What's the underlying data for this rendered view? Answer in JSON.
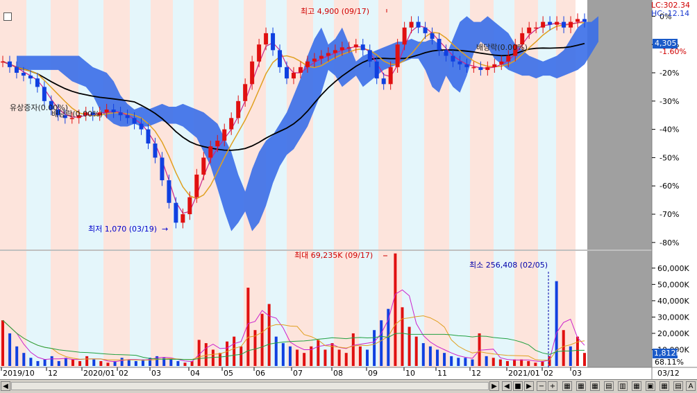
{
  "chart_data": [
    {
      "type": "candlestick",
      "title": "",
      "price_high_label": "최고 4,900 (09/17)",
      "price_low_label": "최저 1,070 (03/19)",
      "last_value_label": "4,305",
      "last_pct_label": "-1.60%",
      "lc_label": "LC:302.34",
      "hc_label": "HC:-12.14",
      "y_axis_ticks": [
        "0%",
        "-10%",
        "-20%",
        "-30%",
        "-40%",
        "-50%",
        "-60%",
        "-70%",
        "-80%"
      ],
      "y_range_pct": [
        -82,
        5
      ],
      "annotations": [
        "유상증자(0.00%)",
        "배당락(0.00%)",
        "배당락(0.00%)"
      ],
      "series": [
        {
          "name": "ichimoku-cloud",
          "color": "#3a6ee8"
        },
        {
          "name": "ma-short",
          "color": "#cc2288"
        },
        {
          "name": "ma-mid",
          "color": "#e0a020"
        },
        {
          "name": "ma-long",
          "color": "#000000"
        }
      ],
      "price_pct": [
        -16,
        -18,
        -20,
        -21,
        -22,
        -25,
        -30,
        -33,
        -35,
        -36,
        -36,
        -35,
        -34,
        -35,
        -34,
        -33,
        -34,
        -35,
        -36,
        -38,
        -40,
        -45,
        -50,
        -58,
        -66,
        -73,
        -70,
        -64,
        -56,
        -50,
        -46,
        -44,
        -40,
        -36,
        -30,
        -24,
        -16,
        -10,
        -6,
        -12,
        -18,
        -22,
        -20,
        -18,
        -16,
        -15,
        -14,
        -13,
        -12,
        -11,
        -11,
        -10,
        -12,
        -16,
        -22,
        -24,
        -18,
        -10,
        -4,
        -2,
        -4,
        -6,
        -8,
        -12,
        -14,
        -16,
        -17,
        -18,
        -18,
        -19,
        -18,
        -17,
        -16,
        -14,
        -10,
        -6,
        -4,
        -4,
        -2,
        -3,
        -2,
        -4,
        -2,
        -1,
        -2
      ]
    },
    {
      "type": "bar",
      "title": "",
      "max_label": "최대 69,235K (09/17)",
      "min_label": "최소 256,408 (02/05)",
      "last_value_label": "1,812K",
      "last_pct_label": "68.11%",
      "y_axis_ticks": [
        "60,000K",
        "50,000K",
        "40,000K",
        "30,000K",
        "20,000K",
        "10,000K"
      ],
      "ylim": [
        0,
        68000
      ],
      "values": [
        28000,
        20000,
        12000,
        8000,
        5000,
        3000,
        4000,
        6000,
        3000,
        5000,
        4000,
        3000,
        6000,
        4000,
        3000,
        2000,
        3000,
        5000,
        4000,
        3000,
        4000,
        5000,
        6000,
        5000,
        4000,
        3000,
        2000,
        3000,
        16000,
        14000,
        10000,
        8000,
        15000,
        18000,
        12000,
        48000,
        22000,
        32000,
        38000,
        18000,
        14000,
        12000,
        10000,
        8000,
        12000,
        16000,
        10000,
        14000,
        10000,
        8000,
        20000,
        12000,
        10000,
        22000,
        28000,
        35000,
        69000,
        36000,
        24000,
        18000,
        14000,
        12000,
        10000,
        8000,
        6000,
        5000,
        5000,
        4000,
        20000,
        6000,
        5000,
        4000,
        3000,
        4000,
        4000,
        3000,
        2000,
        3000,
        6000,
        52000,
        22000,
        12000,
        18000,
        8000
      ]
    }
  ],
  "x_axis_labels": [
    "2019/10",
    "12",
    "2020/01",
    "02",
    "03",
    "04",
    "05",
    "06",
    "07",
    "08",
    "09",
    "10",
    "11",
    "12",
    "2021/01",
    "02",
    "03",
    "03/12"
  ],
  "toolbar": {
    "scroll_left": "◀",
    "scroll_right": "▶",
    "play_back": "◀",
    "play_fwd": "▶",
    "stop": "■",
    "zoom_in": "+",
    "zoom_out": "−",
    "font": "A"
  }
}
